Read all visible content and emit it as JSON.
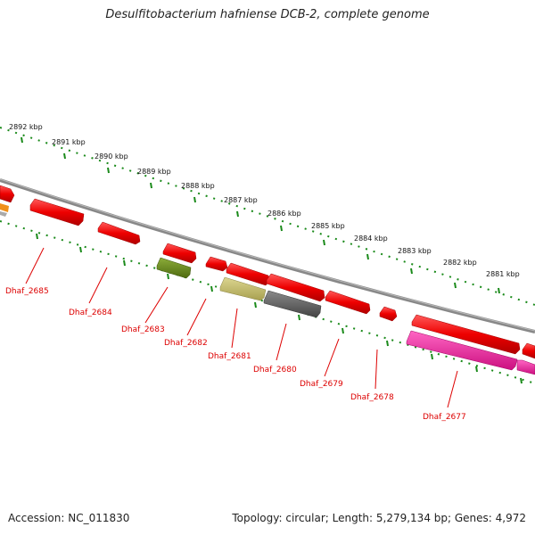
{
  "title": "Desulfitobacterium hafniense DCB-2, complete genome",
  "footer": {
    "accession": "Accession: NC_011830",
    "topology": "Topology: circular; Length: 5,279,134 bp; Genes: 4,972"
  },
  "scale_labels": [
    "2892 kbp",
    "2891 kbp",
    "2890 kbp",
    "2889 kbp",
    "2888 kbp",
    "2887 kbp",
    "2886 kbp",
    "2885 kbp",
    "2884 kbp",
    "2883 kbp",
    "2882 kbp",
    "2881 kbp"
  ],
  "gene_labels": [
    "Dhaf_2685",
    "Dhaf_2684",
    "Dhaf_2683",
    "Dhaf_2682",
    "Dhaf_2681",
    "Dhaf_2680",
    "Dhaf_2679",
    "Dhaf_2678",
    "Dhaf_2677"
  ],
  "colors": {
    "cds_red": "#ee0000",
    "olive": "#6b8c1a",
    "khaki": "#c8c070",
    "gray_gene": "#666666",
    "magenta": "#ee2aa0",
    "orange": "#f0901a",
    "backbone": "#888888",
    "ticks": "#1a8a1a",
    "label": "#dd0000"
  }
}
